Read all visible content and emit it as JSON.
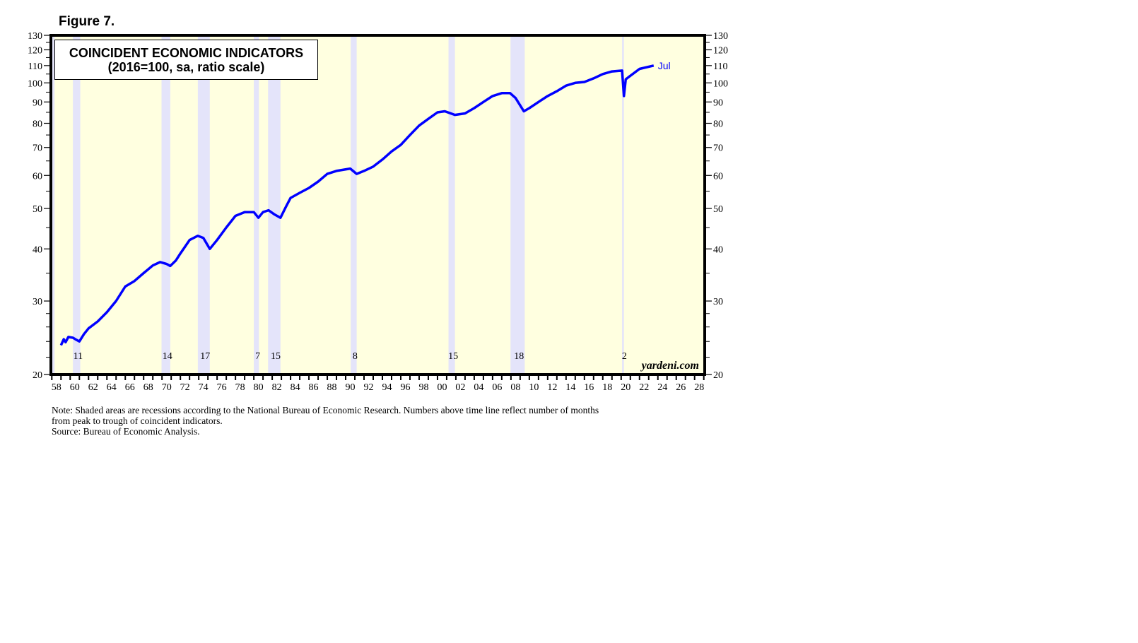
{
  "figure_label": "Figure 7.",
  "chart_data": {
    "type": "line",
    "title": "COINCIDENT ECONOMIC INDICATORS",
    "subtitle": "(2016=100, sa, ratio scale)",
    "y_scale": "log",
    "ylim": [
      20,
      130
    ],
    "xlim": [
      1957.9,
      2029.1
    ],
    "y_ticks": [
      20,
      30,
      40,
      50,
      60,
      70,
      80,
      90,
      100,
      110,
      120,
      130
    ],
    "x_tick_labels": [
      "58",
      "60",
      "62",
      "64",
      "66",
      "68",
      "70",
      "72",
      "74",
      "76",
      "78",
      "80",
      "82",
      "84",
      "86",
      "88",
      "90",
      "92",
      "94",
      "96",
      "98",
      "00",
      "02",
      "04",
      "06",
      "08",
      "10",
      "12",
      "14",
      "16",
      "18",
      "20",
      "22",
      "24",
      "26",
      "28"
    ],
    "grid": false,
    "colors": {
      "line": "#0000FF",
      "background": "#FFFFE0",
      "recession": "#E4E4FA",
      "frame": "#000000"
    },
    "series_end_label": "Jul",
    "watermark": "yardeni.com",
    "recessions": [
      {
        "start": 1957.6,
        "end": 1958.3,
        "label": ""
      },
      {
        "start": 1960.3,
        "end": 1961.1,
        "label": "11"
      },
      {
        "start": 1969.95,
        "end": 1970.9,
        "label": "14"
      },
      {
        "start": 1973.9,
        "end": 1975.2,
        "label": "17"
      },
      {
        "start": 1980.0,
        "end": 1980.55,
        "label": "7"
      },
      {
        "start": 1981.55,
        "end": 1982.9,
        "label": "15"
      },
      {
        "start": 1990.55,
        "end": 1991.2,
        "label": "8"
      },
      {
        "start": 2001.2,
        "end": 2001.9,
        "label": "15"
      },
      {
        "start": 2007.95,
        "end": 2009.5,
        "label": "18"
      },
      {
        "start": 2020.1,
        "end": 2020.3,
        "label": "2"
      }
    ],
    "x": [
      1959.0,
      1959.3,
      1959.5,
      1959.8,
      1960.3,
      1960.7,
      1961.0,
      1961.5,
      1962,
      1963,
      1964,
      1965,
      1966,
      1967,
      1968,
      1969,
      1969.8,
      1970.5,
      1970.9,
      1971.5,
      1972,
      1973,
      1973.9,
      1974.5,
      1975.2,
      1976,
      1977,
      1978,
      1979,
      1980.0,
      1980.5,
      1981,
      1981.6,
      1982.3,
      1982.9,
      1983.5,
      1984,
      1985,
      1986,
      1987,
      1988,
      1989,
      1990.5,
      1991.2,
      1992,
      1993,
      1994,
      1995,
      1996,
      1997,
      1998,
      1999,
      2000,
      2000.8,
      2001.9,
      2003,
      2004,
      2005,
      2006,
      2007,
      2007.9,
      2008.5,
      2009.4,
      2010,
      2011,
      2012,
      2013,
      2014,
      2015,
      2016,
      2017,
      2018,
      2019,
      2020.1,
      2020.3,
      2020.5,
      2021,
      2022,
      2023.54
    ],
    "values": [
      23.5,
      24.3,
      23.9,
      24.6,
      24.5,
      24.2,
      24.0,
      25.0,
      25.8,
      26.8,
      28.2,
      30.0,
      32.5,
      33.5,
      35.0,
      36.5,
      37.2,
      36.8,
      36.4,
      37.5,
      39.0,
      42.0,
      43.0,
      42.5,
      40.0,
      42.0,
      45.0,
      48.0,
      49.0,
      49.0,
      47.5,
      49.0,
      49.5,
      48.3,
      47.5,
      50.5,
      53.0,
      54.5,
      56.0,
      58.0,
      60.5,
      61.5,
      62.3,
      60.5,
      61.5,
      63.0,
      65.5,
      68.5,
      71.0,
      75.0,
      79.0,
      82.0,
      85.0,
      85.5,
      83.8,
      84.5,
      87.0,
      90.0,
      93.0,
      94.5,
      94.5,
      92.0,
      85.5,
      87.0,
      90.0,
      93.0,
      95.5,
      98.5,
      100.0,
      100.5,
      102.5,
      105.0,
      106.5,
      107.0,
      93.0,
      102.0,
      104.0,
      108.0,
      110.0
    ]
  },
  "note": {
    "line1": "Note: Shaded areas are recessions according to the National Bureau of Economic Research. Numbers above time line reflect number of months",
    "line2": "from peak to trough of coincident indicators.",
    "line3": "Source: Bureau of Economic Analysis."
  }
}
